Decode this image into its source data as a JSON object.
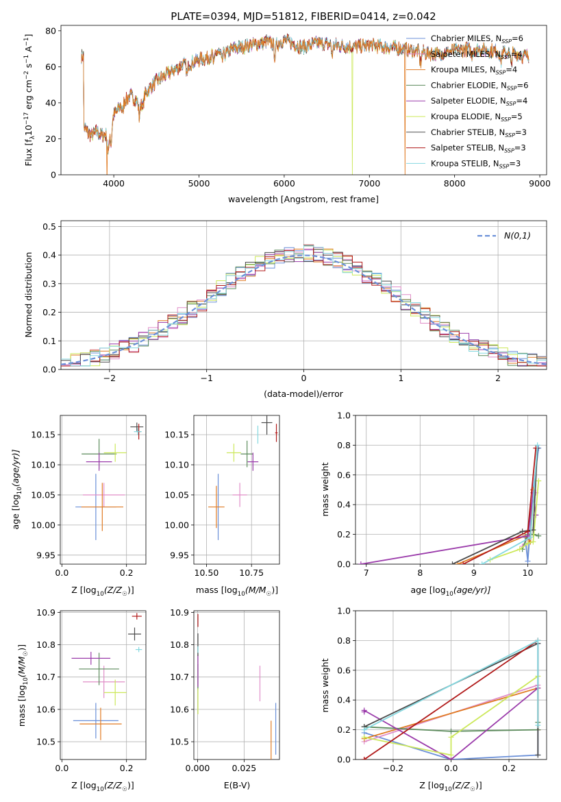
{
  "series_names": [
    "Chabrier MILES, N",
    "Salpeter MILES, N",
    "Kroupa MILES, N",
    "Chabrier ELODIE, N",
    "Salpeter ELODIE, N",
    "Kroupa ELODIE, N",
    "Chabrier STELIB, N",
    "Salpeter STELIB, N",
    "Kroupa STELIB, N"
  ],
  "series_nssp": [
    "=6",
    "=4",
    "=4",
    "=6",
    "=4",
    "=5",
    "=3",
    "=3",
    "=3"
  ],
  "series_colors": [
    "#6a8fd8",
    "#e08dc8",
    "#e07a22",
    "#5a8a5a",
    "#9a3aaa",
    "#cce85a",
    "#4a4a4a",
    "#b01818",
    "#84d8e0"
  ],
  "chart_data": [
    {
      "type": "line",
      "title": "PLATE=0394, MJD=51812, FIBERID=0414, z=0.042",
      "xlabel": "wavelength [Angstrom, rest frame]",
      "ylabel": "Flux [f",
      "ylabel_parts": [
        "Flux [f",
        "λ",
        "10",
        "−17",
        " erg cm",
        "−2",
        " s",
        "−1",
        " A",
        "−1",
        "]"
      ],
      "xlim": [
        3380,
        9080
      ],
      "ylim": [
        0,
        83
      ],
      "xticks": [
        4000,
        5000,
        6000,
        7000,
        8000,
        9000
      ],
      "yticks": [
        0,
        20,
        40,
        60,
        80
      ],
      "legend": "top-right",
      "grid": false,
      "continuum": {
        "x": [
          3650,
          3700,
          3750,
          3800,
          3850,
          3900,
          3950,
          4000,
          4100,
          4200,
          4300,
          4400,
          4500,
          4600,
          4700,
          4800,
          4900,
          5000,
          5100,
          5200,
          5300,
          5400,
          5500,
          5600,
          5700,
          5800,
          5900,
          6000,
          6200,
          6400,
          6600,
          6800,
          7000,
          7200,
          7400,
          7600,
          7800,
          8000,
          8200,
          8400,
          8600,
          8800
        ],
        "y": [
          27,
          23,
          22,
          24,
          22,
          22,
          24,
          33,
          40,
          44,
          40,
          47,
          52,
          55,
          58,
          61,
          62,
          64,
          65,
          68,
          67,
          70,
          71,
          72,
          73,
          74,
          72,
          75,
          71,
          73,
          72,
          71,
          72,
          71,
          70,
          68,
          67,
          69,
          70,
          69,
          68,
          66
        ]
      },
      "dropouts": [
        {
          "series": "Kroupa MILES, N",
          "x": 3920
        },
        {
          "series": "Kroupa ELODIE, N",
          "x": 6800
        },
        {
          "series": "Kroupa MILES, N",
          "x": 7420
        }
      ]
    },
    {
      "type": "line",
      "xlabel": "(data-model)/error",
      "ylabel": "Normed distribution",
      "xlim": [
        -2.5,
        2.5
      ],
      "ylim": [
        0,
        0.52
      ],
      "xticks": [
        -2,
        -1,
        0,
        1,
        2
      ],
      "yticks": [
        0.0,
        0.1,
        0.2,
        0.3,
        0.4,
        0.5
      ],
      "grid": true,
      "legend": "top-right",
      "legend_label": "N(0,1)",
      "bin_width": 0.1,
      "bin_start": -2.5
    },
    {
      "type": "scatter",
      "xlabel": "Z [log",
      "xlabel_parts": [
        "Z [log",
        "10",
        "(Z/Z",
        "☉",
        ")]"
      ],
      "ylabel": "age  [log",
      "ylabel_parts": [
        "age  [log",
        "10",
        "(age/yr)]"
      ],
      "xlim": [
        -0.005,
        0.26
      ],
      "ylim": [
        9.935,
        10.182
      ],
      "xticks": [
        0.0,
        0.2
      ],
      "yticks": [
        9.95,
        10.0,
        10.05,
        10.1,
        10.15
      ],
      "grid": true,
      "points": [
        {
          "x": 0.105,
          "y": 10.03,
          "xerr": 0.063,
          "yerr": 0.055
        },
        {
          "x": 0.13,
          "y": 10.05,
          "xerr": 0.065,
          "yerr": 0.02
        },
        {
          "x": 0.125,
          "y": 10.03,
          "xerr": 0.065,
          "yerr": 0.04
        },
        {
          "x": 0.115,
          "y": 10.118,
          "xerr": 0.054,
          "yerr": 0.025
        },
        {
          "x": 0.115,
          "y": 10.105,
          "xerr": 0.04,
          "yerr": 0.015
        },
        {
          "x": 0.165,
          "y": 10.12,
          "xerr": 0.035,
          "yerr": 0.015
        },
        {
          "x": 0.232,
          "y": 10.163,
          "xerr": 0.02,
          "yerr": 0.007
        },
        {
          "x": 0.238,
          "y": 10.155,
          "xerr": 0.006,
          "yerr": 0.013
        },
        {
          "x": 0.235,
          "y": 10.155,
          "xerr": 0.012,
          "yerr": 0.006
        }
      ]
    },
    {
      "type": "scatter",
      "xlabel": "mass [log",
      "xlabel_parts": [
        "mass [log",
        "10",
        "(M/M",
        "☉",
        ")]"
      ],
      "xlim": [
        10.43,
        10.905
      ],
      "ylim": [
        9.935,
        10.182
      ],
      "xticks": [
        10.5,
        10.75
      ],
      "yticks": [
        9.95,
        10.0,
        10.05,
        10.1,
        10.15
      ],
      "grid": true,
      "points": [
        {
          "x": 10.565,
          "y": 10.03,
          "xerr": 0.0,
          "yerr": 0.055
        },
        {
          "x": 10.685,
          "y": 10.05,
          "xerr": 0.04,
          "yerr": 0.02
        },
        {
          "x": 10.555,
          "y": 10.03,
          "xerr": 0.045,
          "yerr": 0.035
        },
        {
          "x": 10.725,
          "y": 10.118,
          "xerr": 0.035,
          "yerr": 0.022
        },
        {
          "x": 10.758,
          "y": 10.105,
          "xerr": 0.03,
          "yerr": 0.015
        },
        {
          "x": 10.652,
          "y": 10.12,
          "xerr": 0.04,
          "yerr": 0.015
        },
        {
          "x": 10.835,
          "y": 10.17,
          "xerr": 0.03,
          "yerr": 0.02
        },
        {
          "x": 10.888,
          "y": 10.153,
          "xerr": 0.007,
          "yerr": 0.015
        },
        {
          "x": 10.785,
          "y": 10.15,
          "xerr": 0.0,
          "yerr": 0.015
        }
      ]
    },
    {
      "type": "line",
      "xlabel": "age  [log",
      "xlabel_parts": [
        "age  [log",
        "10",
        "(age/yr)]"
      ],
      "ylabel": "mass weight",
      "xlim": [
        6.8,
        10.35
      ],
      "ylim": [
        0,
        1.0
      ],
      "xticks": [
        7,
        8,
        9,
        10
      ],
      "yticks": [
        0.0,
        0.2,
        0.4,
        0.6,
        0.8,
        1.0
      ],
      "grid": true,
      "series": [
        {
          "x": [
            9.95,
            10.0,
            10.1,
            10.2
          ],
          "y": [
            0.18,
            0.02,
            0.5,
            0.78
          ]
        },
        {
          "x": [
            9.9,
            10.05,
            10.1,
            10.15
          ],
          "y": [
            0.12,
            0.2,
            0.5,
            0.48
          ]
        },
        {
          "x": [
            8.7,
            9.95,
            10.05,
            10.1
          ],
          "y": [
            0.0,
            0.19,
            0.15,
            0.5
          ]
        },
        {
          "x": [
            9.9,
            10.0,
            10.1,
            10.2
          ],
          "y": [
            0.1,
            0.2,
            0.2,
            0.19
          ]
        },
        {
          "x": [
            6.9,
            10.0,
            10.1,
            10.15
          ],
          "y": [
            0.0,
            0.19,
            0.48,
            0.33
          ]
        },
        {
          "x": [
            9.3,
            9.85,
            10.0,
            10.1,
            10.2
          ],
          "y": [
            0.03,
            0.1,
            0.14,
            0.15,
            0.56
          ]
        },
        {
          "x": [
            8.6,
            9.9,
            10.1,
            10.18
          ],
          "y": [
            0.0,
            0.22,
            0.23,
            0.78
          ]
        },
        {
          "x": [
            8.8,
            10.0,
            10.15
          ],
          "y": [
            0.0,
            0.22,
            0.78
          ]
        },
        {
          "x": [
            9.15,
            10.05,
            10.18
          ],
          "y": [
            0.0,
            0.18,
            0.8
          ]
        }
      ]
    },
    {
      "type": "scatter",
      "xlabel": "Z [log",
      "xlabel_parts": [
        "Z [log",
        "10",
        "(Z/Z",
        "☉",
        ")]"
      ],
      "ylabel": "mass [log",
      "ylabel_parts": [
        "mass [log",
        "10",
        "(M/M",
        "☉",
        ")]"
      ],
      "xlim": [
        -0.005,
        0.26
      ],
      "ylim": [
        10.445,
        10.905
      ],
      "xticks": [
        0.0,
        0.2
      ],
      "yticks": [
        10.5,
        10.6,
        10.7,
        10.8,
        10.9
      ],
      "grid": true,
      "points": [
        {
          "x": 0.105,
          "y": 10.565,
          "xerr": 0.07,
          "yerr": 0.055
        },
        {
          "x": 0.13,
          "y": 10.685,
          "xerr": 0.065,
          "yerr": 0.05
        },
        {
          "x": 0.12,
          "y": 10.555,
          "xerr": 0.065,
          "yerr": 0.05
        },
        {
          "x": 0.115,
          "y": 10.725,
          "xerr": 0.062,
          "yerr": 0.05
        },
        {
          "x": 0.09,
          "y": 10.758,
          "xerr": 0.06,
          "yerr": 0.02
        },
        {
          "x": 0.165,
          "y": 10.652,
          "xerr": 0.035,
          "yerr": 0.04
        },
        {
          "x": 0.225,
          "y": 10.833,
          "xerr": 0.02,
          "yerr": 0.02
        },
        {
          "x": 0.232,
          "y": 10.888,
          "xerr": 0.015,
          "yerr": 0.01
        },
        {
          "x": 0.238,
          "y": 10.785,
          "xerr": 0.01,
          "yerr": 0.008
        }
      ]
    },
    {
      "type": "scatter",
      "xlabel": "E(B-V)",
      "xlim": [
        -0.002,
        0.044
      ],
      "ylim": [
        10.445,
        10.905
      ],
      "xticks": [
        0.0,
        0.025
      ],
      "yticks": [
        10.5,
        10.6,
        10.7,
        10.8,
        10.9
      ],
      "grid": true,
      "points": [
        {
          "x": 0.042,
          "y": 10.54,
          "xerr": 0.0,
          "yerr": 0.08
        },
        {
          "x": 0.0335,
          "y": 10.68,
          "xerr": 0.0,
          "yerr": 0.055
        },
        {
          "x": 0.0395,
          "y": 10.5,
          "xerr": 0.0,
          "yerr": 0.065
        },
        {
          "x": 0.0002,
          "y": 10.7,
          "xerr": 0.0,
          "yerr": 0.04
        },
        {
          "x": 0.0002,
          "y": 10.72,
          "xerr": 0.0,
          "yerr": 0.05
        },
        {
          "x": 0.0002,
          "y": 10.625,
          "xerr": 0.0,
          "yerr": 0.04
        },
        {
          "x": 0.0002,
          "y": 10.8,
          "xerr": 0.0,
          "yerr": 0.035
        },
        {
          "x": 0.0002,
          "y": 10.875,
          "xerr": 0.0,
          "yerr": 0.02
        },
        {
          "x": 0.0002,
          "y": 10.785,
          "xerr": 0.0,
          "yerr": 0.01
        }
      ]
    },
    {
      "type": "line",
      "xlabel": "Z [log",
      "xlabel_parts": [
        "Z [log",
        "10",
        "(Z/Z",
        "☉",
        ")]"
      ],
      "ylabel": "mass weight",
      "xlim": [
        -0.33,
        0.33
      ],
      "ylim": [
        0,
        1.0
      ],
      "xticks": [
        -0.2,
        0.0,
        0.2
      ],
      "yticks": [
        0.0,
        0.2,
        0.4,
        0.6,
        0.8,
        1.0
      ],
      "grid": true,
      "series": [
        {
          "x": [
            -0.3,
            0.0,
            0.3,
            0.3
          ],
          "y": [
            0.18,
            0.0,
            0.03,
            0.78
          ]
        },
        {
          "x": [
            -0.3,
            0.3,
            0.3
          ],
          "y": [
            0.12,
            0.5,
            0.2
          ]
        },
        {
          "x": [
            -0.3,
            0.3,
            0.3
          ],
          "y": [
            0.14,
            0.48,
            0.2
          ]
        },
        {
          "x": [
            -0.3,
            0.0,
            0.3,
            0.3
          ],
          "y": [
            0.22,
            0.19,
            0.2,
            0.25
          ]
        },
        {
          "x": [
            -0.3,
            -0.3,
            0.0,
            0.3
          ],
          "y": [
            0.32,
            0.33,
            0.0,
            0.48
          ]
        },
        {
          "x": [
            -0.3,
            0.0,
            0.0,
            0.3
          ],
          "y": [
            0.15,
            0.03,
            0.15,
            0.56
          ]
        },
        {
          "x": [
            -0.3,
            0.3,
            0.3
          ],
          "y": [
            0.22,
            0.78,
            0.03
          ]
        },
        {
          "x": [
            -0.3,
            -0.3,
            0.3
          ],
          "y": [
            0.0,
            0.0,
            0.8
          ]
        },
        {
          "x": [
            -0.3,
            0.3,
            0.3
          ],
          "y": [
            0.2,
            0.8,
            0.23
          ]
        }
      ]
    }
  ]
}
